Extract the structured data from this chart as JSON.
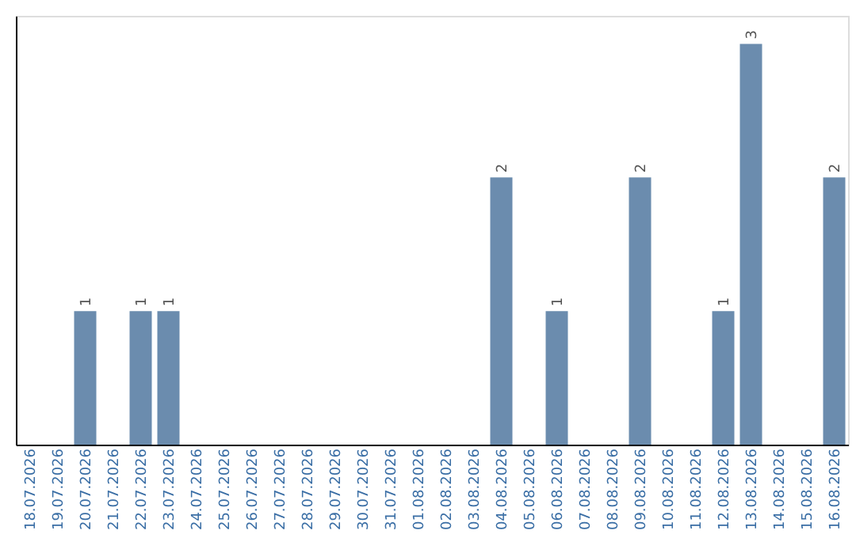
{
  "chart_data": {
    "type": "bar",
    "categories": [
      "18.07.2026",
      "19.07.2026",
      "20.07.2026",
      "21.07.2026",
      "22.07.2026",
      "23.07.2026",
      "24.07.2026",
      "25.07.2026",
      "26.07.2026",
      "27.07.2026",
      "28.07.2026",
      "29.07.2026",
      "30.07.2026",
      "31.07.2026",
      "01.08.2026",
      "02.08.2026",
      "03.08.2026",
      "04.08.2026",
      "05.08.2026",
      "06.08.2026",
      "07.08.2026",
      "08.08.2026",
      "09.08.2026",
      "10.08.2026",
      "11.08.2026",
      "12.08.2026",
      "13.08.2026",
      "14.08.2026",
      "15.08.2026",
      "16.08.2026"
    ],
    "values": [
      0,
      0,
      1,
      0,
      1,
      1,
      0,
      0,
      0,
      0,
      0,
      0,
      0,
      0,
      0,
      0,
      0,
      2,
      0,
      1,
      0,
      0,
      2,
      0,
      0,
      1,
      3,
      0,
      0,
      2
    ],
    "value_labels": [
      null,
      null,
      "1",
      null,
      "1",
      "1",
      null,
      null,
      null,
      null,
      null,
      null,
      null,
      null,
      null,
      null,
      null,
      "2",
      null,
      "1",
      null,
      null,
      "2",
      null,
      null,
      "1",
      "3",
      null,
      null,
      "2"
    ],
    "color": "#6b8cae",
    "tick_labels": "x",
    "grid": false
  }
}
